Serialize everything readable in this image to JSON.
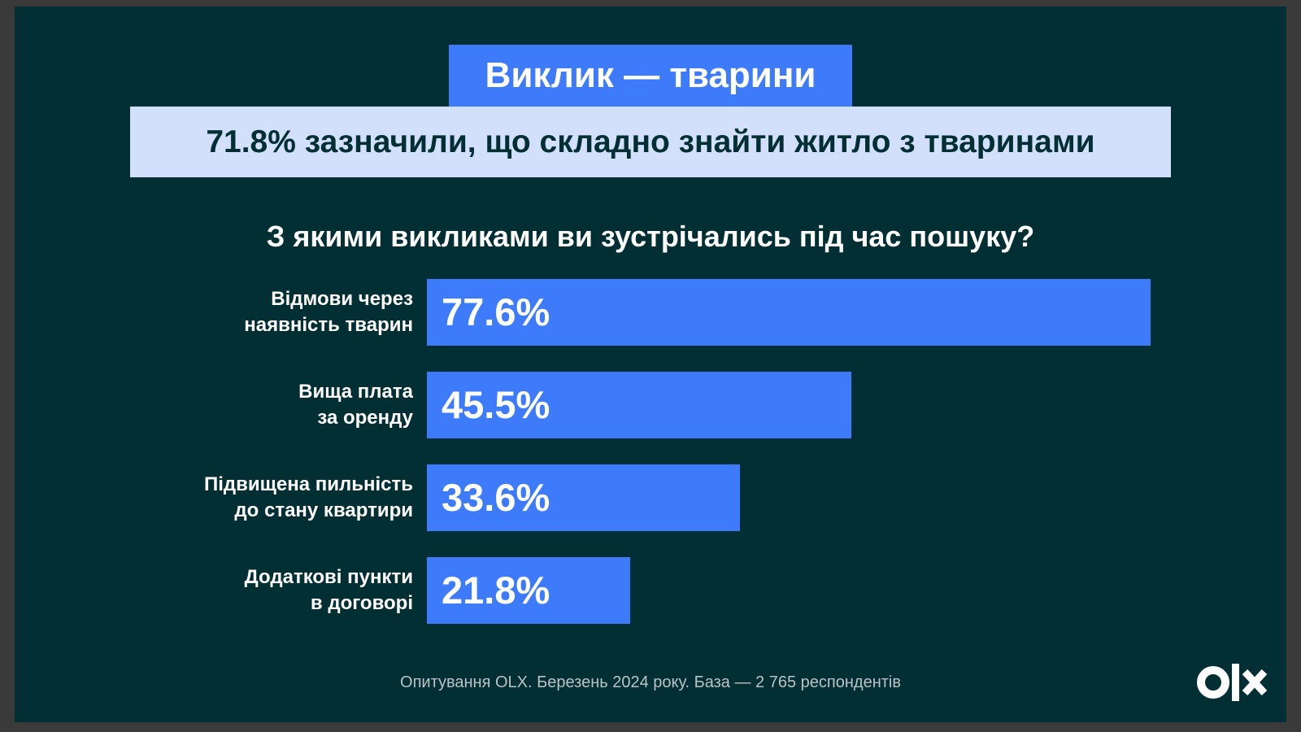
{
  "chart_data": {
    "type": "bar",
    "title": "Виклик — тварини",
    "subtitle": "71.8% зазначили, що складно знайти житло з тваринами",
    "question": "З якими викликами ви зустрічались під час пошуку?",
    "categories": [
      [
        "Відмови через",
        "наявність тварин"
      ],
      [
        "Вища плата",
        "за оренду"
      ],
      [
        "Підвищена пильність",
        "до стану квартири"
      ],
      [
        "Додаткові пункти",
        "в договорі"
      ]
    ],
    "values": [
      77.6,
      45.5,
      33.6,
      21.8
    ],
    "value_labels": [
      "77.6%",
      "45.5%",
      "33.6%",
      "21.8%"
    ],
    "color": "#3d7bfa",
    "footnote": "Опитування OLX. Березень 2024 року. База — 2 765 респондентів"
  }
}
